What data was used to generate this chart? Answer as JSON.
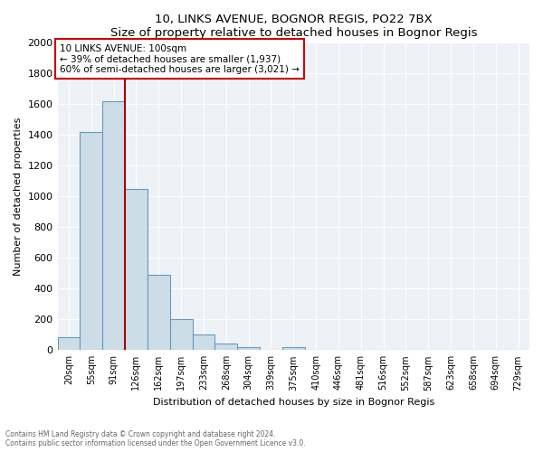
{
  "title1": "10, LINKS AVENUE, BOGNOR REGIS, PO22 7BX",
  "title2": "Size of property relative to detached houses in Bognor Regis",
  "xlabel": "Distribution of detached houses by size in Bognor Regis",
  "ylabel": "Number of detached properties",
  "footnote1": "Contains HM Land Registry data © Crown copyright and database right 2024.",
  "footnote2": "Contains public sector information licensed under the Open Government Licence v3.0.",
  "bar_color": "#ccdde8",
  "bar_edge_color": "#6699bb",
  "annotation_box_color": "#cc0000",
  "annotation_line_color": "#aa0000",
  "categories": [
    "20sqm",
    "55sqm",
    "91sqm",
    "126sqm",
    "162sqm",
    "197sqm",
    "233sqm",
    "268sqm",
    "304sqm",
    "339sqm",
    "375sqm",
    "410sqm",
    "446sqm",
    "481sqm",
    "516sqm",
    "552sqm",
    "587sqm",
    "623sqm",
    "658sqm",
    "694sqm",
    "729sqm"
  ],
  "values": [
    85,
    1420,
    1620,
    1050,
    490,
    200,
    100,
    40,
    20,
    0,
    20,
    0,
    0,
    0,
    0,
    0,
    0,
    0,
    0,
    0,
    0
  ],
  "property_line_x": 2.5,
  "annotation_text_line1": "10 LINKS AVENUE: 100sqm",
  "annotation_text_line2": "← 39% of detached houses are smaller (1,937)",
  "annotation_text_line3": "60% of semi-detached houses are larger (3,021) →",
  "ylim": [
    0,
    2000
  ],
  "yticks": [
    0,
    200,
    400,
    600,
    800,
    1000,
    1200,
    1400,
    1600,
    1800,
    2000
  ],
  "background_color": "#eef2f7",
  "grid_color": "#ffffff"
}
